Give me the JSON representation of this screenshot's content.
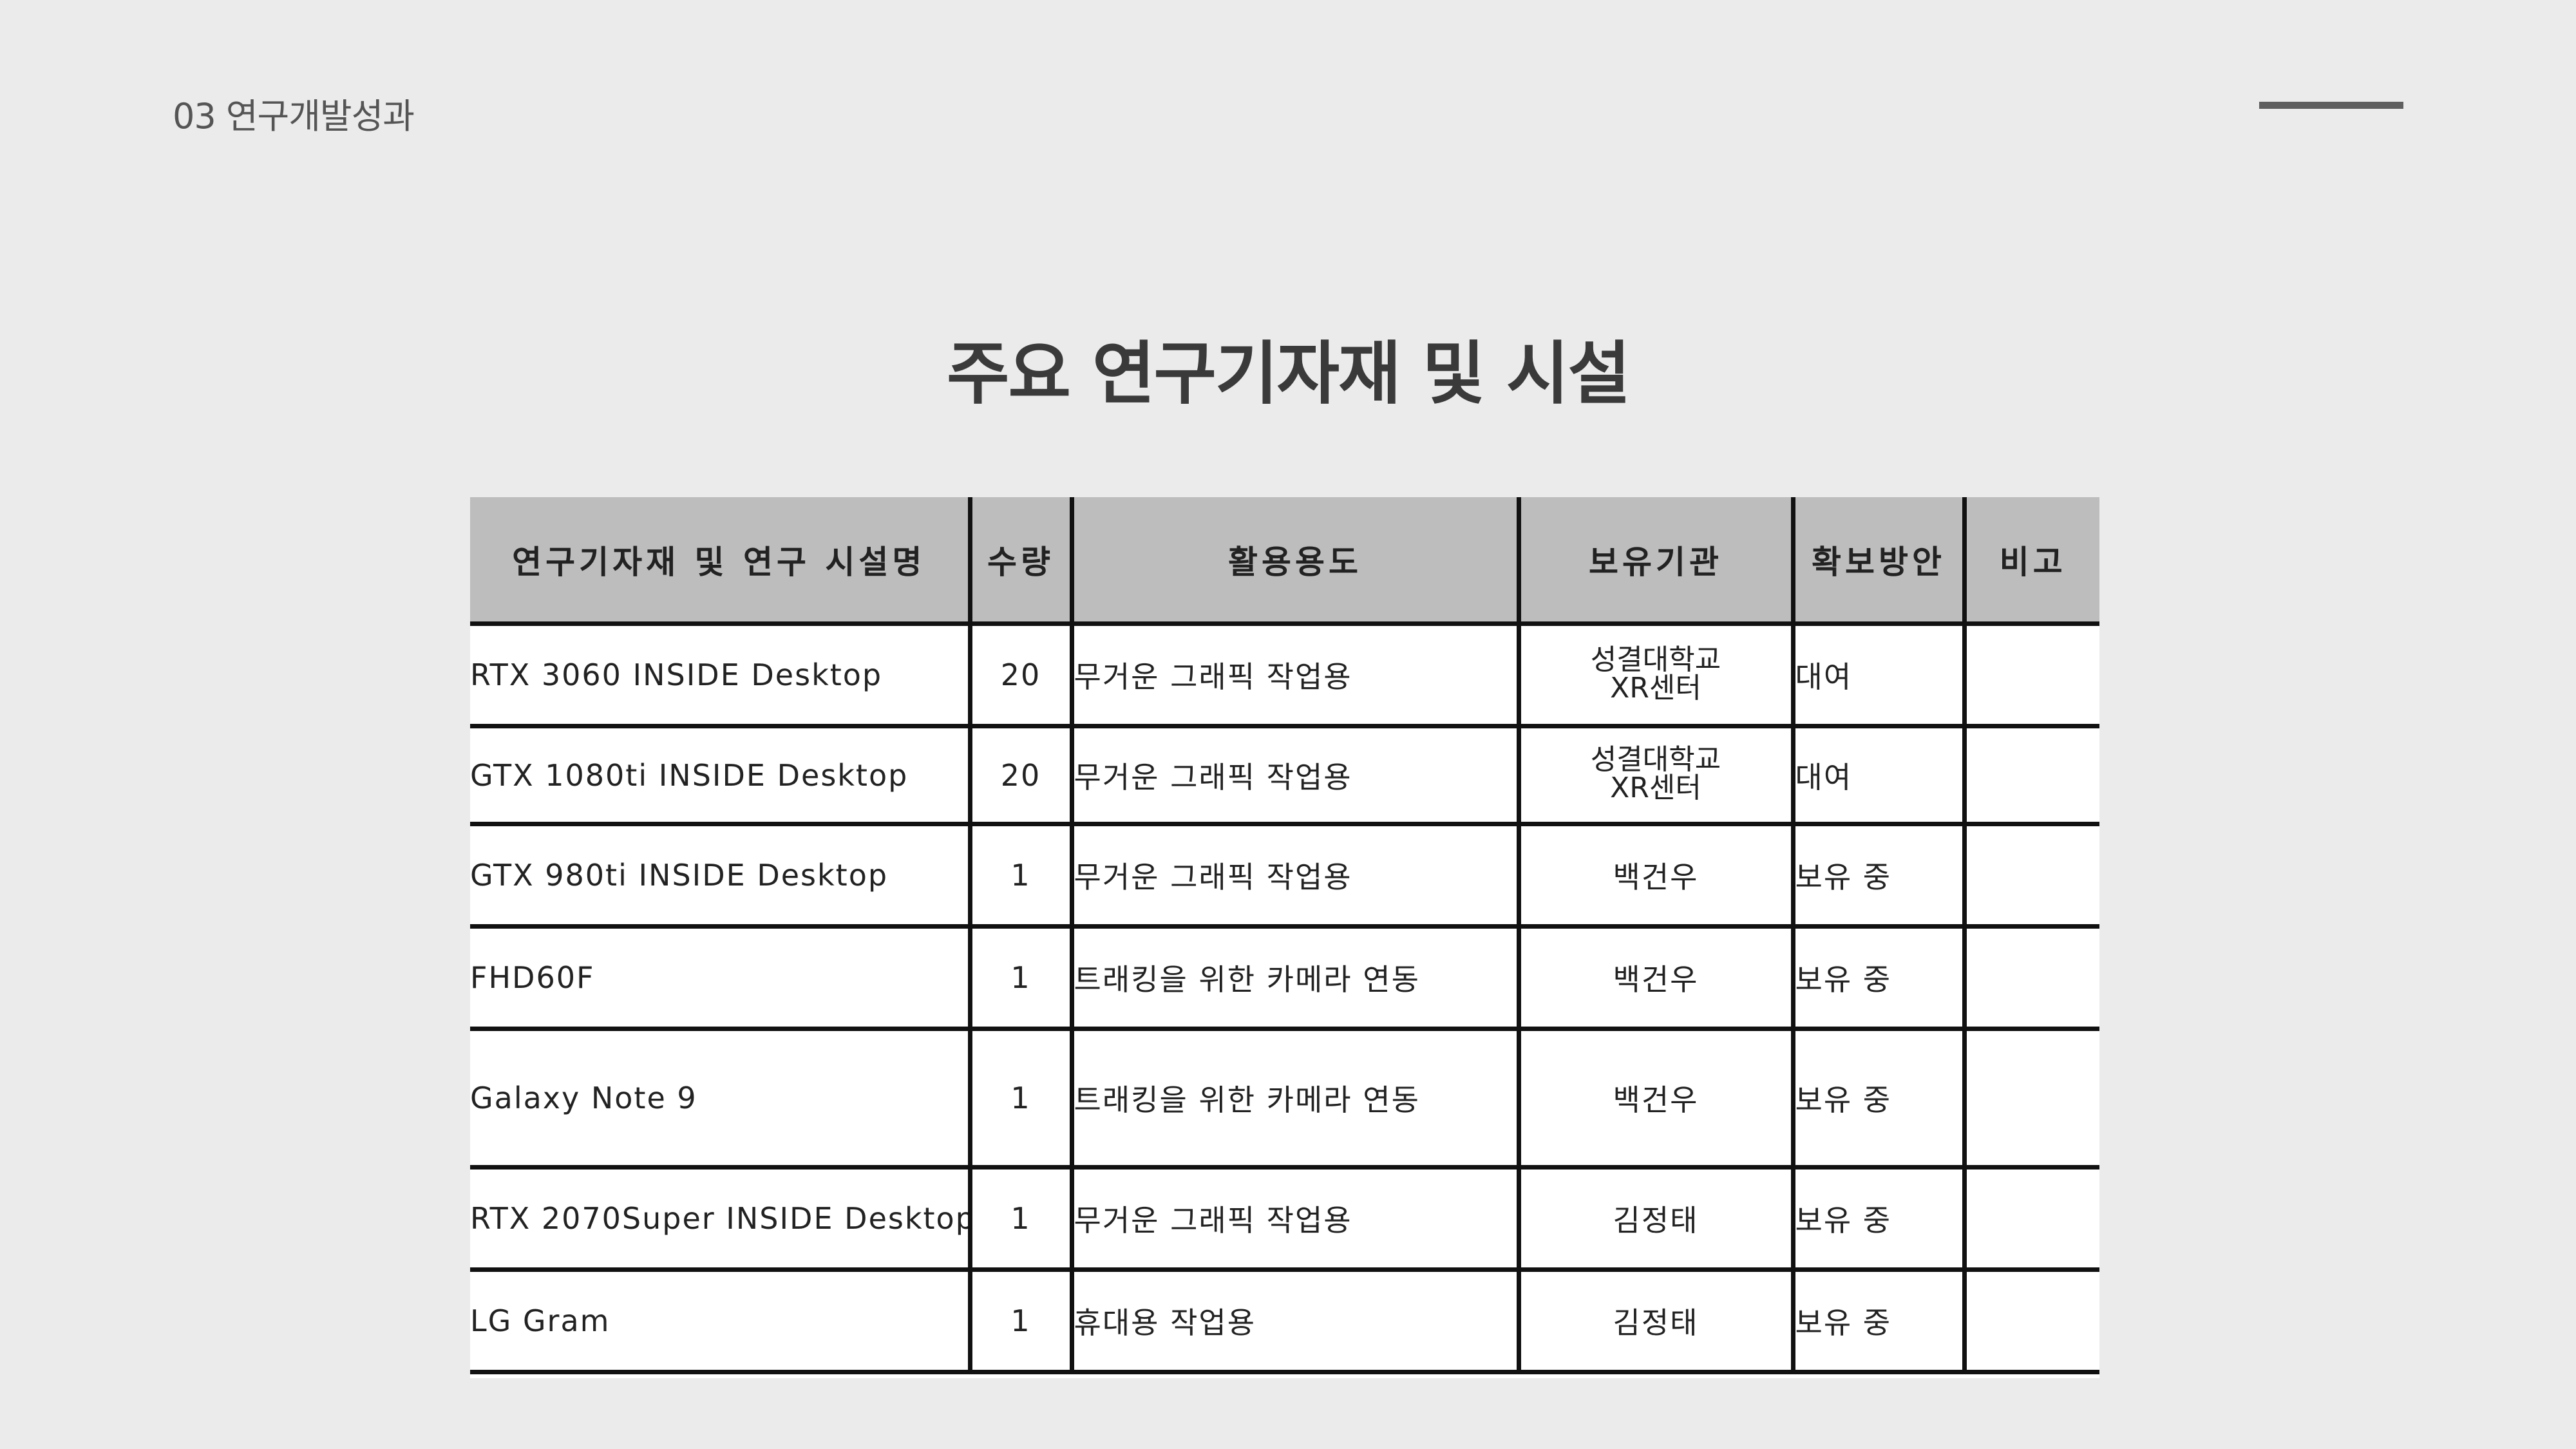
{
  "header": {
    "section_label": "03 연구개발성과"
  },
  "title": "주요 연구기자재 및 시설",
  "table": {
    "columns": [
      "연구기자재 및 연구 시설명",
      "수량",
      "활용용도",
      "보유기관",
      "확보방안",
      "비고"
    ],
    "rows": [
      {
        "name": "RTX 3060 INSIDE Desktop",
        "qty": "20",
        "use": "무거운 그래픽 작업용",
        "org": "성결대학교\nXR센터",
        "method": "대여",
        "note": ""
      },
      {
        "name": "GTX 1080ti INSIDE Desktop",
        "qty": "20",
        "use": "무거운 그래픽 작업용",
        "org": "성결대학교\nXR센터",
        "method": "대여",
        "note": ""
      },
      {
        "name": "GTX 980ti INSIDE Desktop",
        "qty": "1",
        "use": "무거운 그래픽 작업용",
        "org": "백건우",
        "method": "보유 중",
        "note": ""
      },
      {
        "name": "FHD60F",
        "qty": "1",
        "use": "트래킹을 위한 카메라 연동",
        "org": "백건우",
        "method": "보유 중",
        "note": ""
      },
      {
        "name": "Galaxy Note 9",
        "qty": "1",
        "use": "트래킹을 위한 카메라 연동",
        "org": "백건우",
        "method": "보유 중",
        "note": ""
      },
      {
        "name": "RTX 2070Super INSIDE Desktop",
        "qty": "1",
        "use": "무거운 그래픽 작업용",
        "org": "김정태",
        "method": "보유 중",
        "note": ""
      },
      {
        "name": "LG Gram",
        "qty": "1",
        "use": "휴대용 작업용",
        "org": "김정태",
        "method": "보유 중",
        "note": ""
      }
    ]
  },
  "colors": {
    "background": "#ebebeb",
    "header_fill": "#bdbdbd",
    "title_text": "#3a3a3a",
    "rule": "#5f5f5f"
  }
}
